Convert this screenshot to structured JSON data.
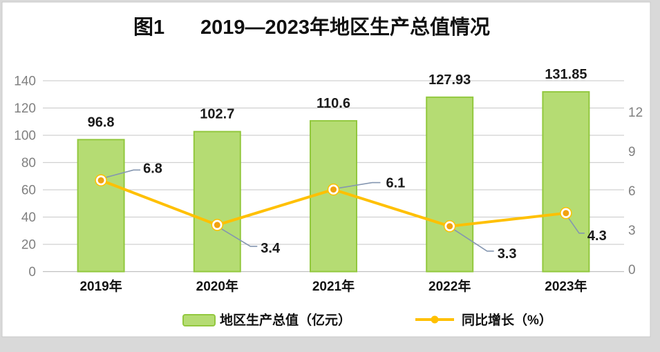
{
  "title": {
    "prefix": "图1",
    "main": "2019—2023年地区生产总值情况"
  },
  "legend": [
    {
      "series": "bar",
      "label": "地区生产总值（亿元）"
    },
    {
      "series": "line",
      "label": "同比增长（%）"
    }
  ],
  "colors": {
    "bar_fill": "#b5dc73",
    "bar_border": "#92c83e",
    "line": "#ffc000",
    "marker_center": "#f2a110",
    "marker_ring": "#ffc000",
    "leader": "#8496b0",
    "axis_text": "#808080",
    "gridline": "#d0d0d0",
    "baseline": "#c0c0c0",
    "label_text": "#1a1a1a"
  },
  "chart_data": {
    "type": "bar+line combo",
    "title": "图1　2019—2023年地区生产总值情况",
    "categories": [
      "2019年",
      "2020年",
      "2021年",
      "2022年",
      "2023年"
    ],
    "series": [
      {
        "name": "地区生产总值（亿元）",
        "type": "bar",
        "axis": "left",
        "values": [
          96.8,
          102.7,
          110.6,
          127.93,
          131.85
        ],
        "labels": [
          "96.8",
          "102.7",
          "110.6",
          "127.93",
          "131.85"
        ]
      },
      {
        "name": "同比增长（%）",
        "type": "line",
        "axis": "right",
        "values": [
          6.8,
          3.4,
          6.1,
          3.3,
          4.3
        ],
        "labels": [
          "6.8",
          "3.4",
          "6.1",
          "3.3",
          "4.3"
        ]
      }
    ],
    "left_axis": {
      "ticks": [
        0,
        20,
        40,
        60,
        80,
        100,
        120,
        140
      ],
      "min": 0,
      "max": 140
    },
    "right_axis": {
      "ticks": [
        0,
        3,
        6,
        9,
        12
      ],
      "min": 0,
      "max": 14.4
    },
    "grid": true,
    "legend_position": "bottom"
  }
}
